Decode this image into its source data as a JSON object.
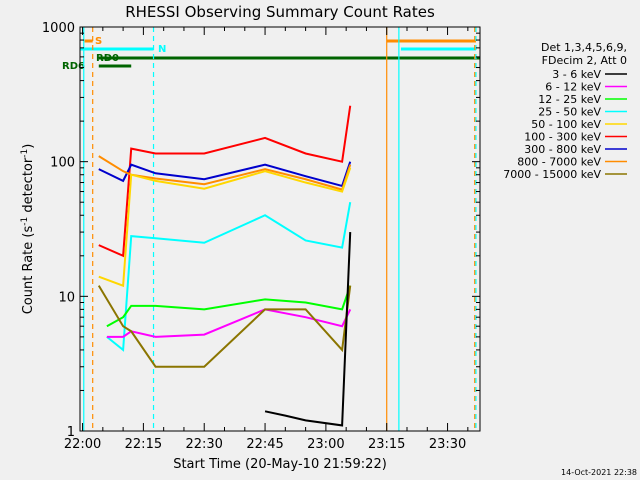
{
  "chart_data": {
    "type": "line",
    "title": "RHESSI Observing Summary Count Rates",
    "xlabel": "Start Time (20-May-10 21:59:22)",
    "ylabel_main": "Count Rate (s",
    "ylabel_sup1": "-1",
    "ylabel_mid": " detector",
    "ylabel_sup2": "-1",
    "ylabel_end": ")",
    "x_ticks": [
      "22:00",
      "22:15",
      "22:30",
      "22:45",
      "23:00",
      "23:15",
      "23:30"
    ],
    "y_ticks": [
      "1",
      "10",
      "100",
      "1000"
    ],
    "x_range_min": [
      -0.63,
      98.0
    ],
    "y_range": [
      1,
      1000
    ],
    "y_scale": "log",
    "legend": {
      "header1": "Det 1,3,4,5,6,9,",
      "header2": "FDecim 2, Att 0",
      "entries": [
        {
          "label": "3 - 6 keV",
          "color": "#000000"
        },
        {
          "label": "6 - 12 keV",
          "color": "#ff00ff"
        },
        {
          "label": "12 - 25 keV",
          "color": "#00ff00"
        },
        {
          "label": "25 - 50 keV",
          "color": "#00ffff"
        },
        {
          "label": "50 - 100 keV",
          "color": "#ffd700"
        },
        {
          "label": "100 - 300 keV",
          "color": "#ff0000"
        },
        {
          "label": "300 - 800 keV",
          "color": "#0000cc"
        },
        {
          "label": "800 - 7000 keV",
          "color": "#ff8c00"
        },
        {
          "label": "7000 - 15000 keV",
          "color": "#8b7500"
        }
      ]
    },
    "flag_bars": [
      {
        "label": "S",
        "color": "#ff8c00"
      },
      {
        "label": "N",
        "color": "#00ffff"
      },
      {
        "label": "RD0",
        "color": "#006400"
      },
      {
        "label": "RD6",
        "color": "#006400"
      }
    ],
    "series": [
      {
        "name": "100 - 300 keV",
        "color": "#ff0000",
        "x": [
          4,
          10,
          12,
          18,
          30,
          45,
          55,
          64,
          66
        ],
        "y": [
          24,
          20,
          125,
          115,
          115,
          150,
          115,
          100,
          260
        ]
      },
      {
        "name": "300 - 800 keV",
        "color": "#0000cc",
        "x": [
          4,
          10,
          12,
          18,
          30,
          45,
          55,
          64,
          66
        ],
        "y": [
          88,
          72,
          95,
          82,
          74,
          95,
          78,
          66,
          100
        ]
      },
      {
        "name": "800 - 7000 keV",
        "color": "#ff8c00",
        "x": [
          4,
          10,
          12,
          18,
          30,
          45,
          55,
          64,
          66
        ],
        "y": [
          110,
          85,
          80,
          75,
          68,
          88,
          74,
          62,
          95
        ]
      },
      {
        "name": "50 - 100 keV",
        "color": "#ffd700",
        "x": [
          4,
          10,
          12,
          18,
          30,
          45,
          55,
          64,
          66
        ],
        "y": [
          14,
          12,
          80,
          72,
          63,
          85,
          70,
          60,
          90
        ]
      },
      {
        "name": "25 - 50 keV",
        "color": "#00ffff",
        "x": [
          6,
          10,
          12,
          18,
          30,
          45,
          55,
          64,
          66
        ],
        "y": [
          5,
          4,
          28,
          27,
          25,
          40,
          26,
          23,
          50
        ]
      },
      {
        "name": "12 - 25 keV",
        "color": "#00ff00",
        "x": [
          6,
          10,
          12,
          18,
          30,
          45,
          55,
          64,
          66
        ],
        "y": [
          6,
          7,
          8.5,
          8.5,
          8,
          9.5,
          9,
          8,
          12
        ]
      },
      {
        "name": "6 - 12 keV",
        "color": "#ff00ff",
        "x": [
          6,
          10,
          12,
          18,
          30,
          45,
          55,
          64,
          66
        ],
        "y": [
          5,
          5,
          5.5,
          5,
          5.2,
          8,
          7,
          6,
          8
        ]
      },
      {
        "name": "7000 - 15000 keV",
        "color": "#8b7500",
        "x": [
          4,
          10,
          12,
          18,
          30,
          45,
          55,
          64,
          66
        ],
        "y": [
          12,
          6,
          5.5,
          3,
          3,
          8,
          8,
          4,
          12
        ]
      },
      {
        "name": "3 - 6 keV",
        "color": "#000000",
        "x": [
          45,
          50,
          55,
          64,
          66
        ],
        "y": [
          1.4,
          1.3,
          1.2,
          1.1,
          30
        ]
      }
    ]
  }
}
